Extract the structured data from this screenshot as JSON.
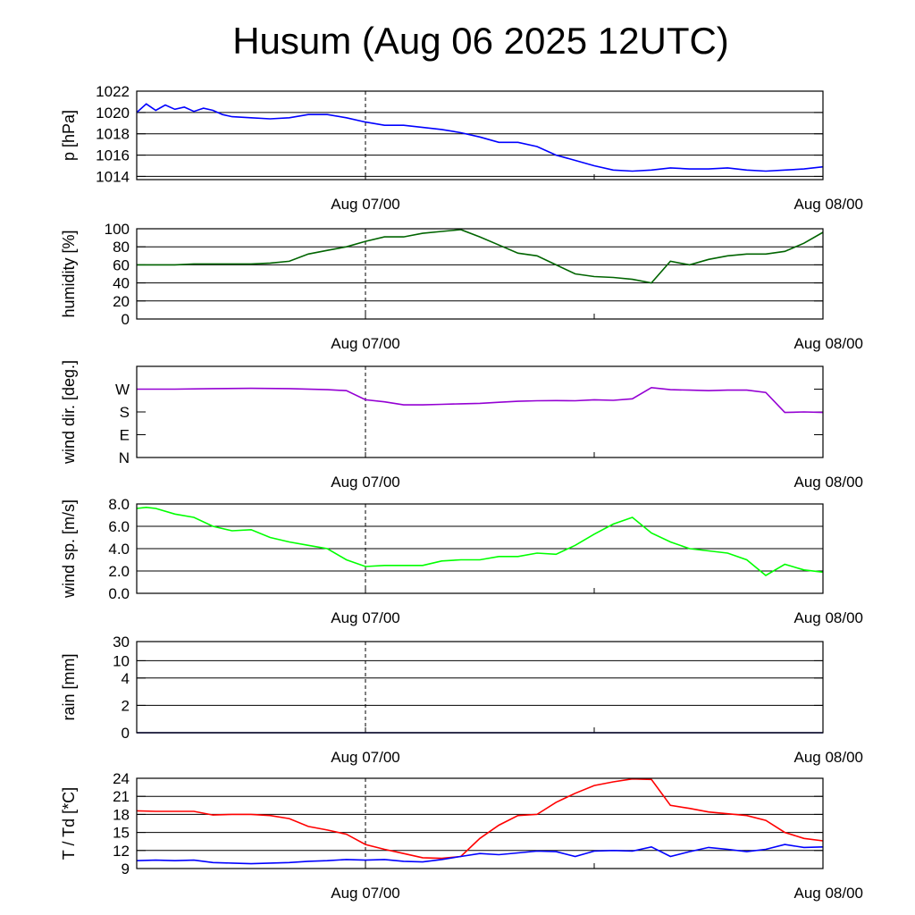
{
  "title": "Husum (Aug 06 2025 12UTC)",
  "x_tick_labels": [
    "Aug 07/00",
    "Aug 08/00"
  ],
  "chart_data": [
    {
      "type": "line",
      "ylabel": "p [hPa]",
      "ylim": [
        1013.7,
        1022
      ],
      "yticks": [
        1022,
        1020,
        1018,
        1016,
        1014
      ],
      "ytick_labels": [
        "1022",
        "1020",
        "1018",
        "1016",
        "1014"
      ],
      "grid": true,
      "series": [
        {
          "color": "#0000ff",
          "x": [
            0,
            0.5,
            1,
            1.5,
            2,
            2.5,
            3,
            3.5,
            4,
            4.5,
            5,
            6,
            7,
            8,
            9,
            10,
            11,
            12,
            13,
            14,
            15,
            16,
            17,
            18,
            19,
            20,
            21,
            22,
            23,
            24,
            25,
            26,
            27,
            28,
            29,
            30,
            31,
            32,
            33,
            34,
            35,
            36
          ],
          "y": [
            1020,
            1020.8,
            1020.2,
            1020.7,
            1020.3,
            1020.5,
            1020.1,
            1020.4,
            1020.2,
            1019.8,
            1019.6,
            1019.5,
            1019.4,
            1019.5,
            1019.8,
            1019.8,
            1019.5,
            1019.1,
            1018.8,
            1018.8,
            1018.6,
            1018.4,
            1018.1,
            1017.7,
            1017.2,
            1017.2,
            1016.8,
            1016.0,
            1015.5,
            1015.0,
            1014.6,
            1014.5,
            1014.6,
            1014.8,
            1014.7,
            1014.7,
            1014.8,
            1014.6,
            1014.5,
            1014.6,
            1014.7,
            1014.9
          ]
        }
      ]
    },
    {
      "type": "line",
      "ylabel": "humidity [%]",
      "ylim": [
        0,
        100
      ],
      "yticks": [
        100,
        80,
        60,
        40,
        20,
        0
      ],
      "ytick_labels": [
        "100",
        "80",
        "60",
        "40",
        "20",
        "0"
      ],
      "grid": true,
      "series": [
        {
          "color": "#006400",
          "x": [
            0,
            1,
            2,
            3,
            4,
            5,
            6,
            7,
            8,
            9,
            10,
            11,
            12,
            13,
            14,
            15,
            16,
            17,
            18,
            19,
            20,
            21,
            22,
            23,
            24,
            25,
            26,
            27,
            28,
            29,
            30,
            31,
            32,
            33,
            34,
            35,
            36
          ],
          "y": [
            60,
            60,
            60,
            61,
            61,
            61,
            61,
            62,
            64,
            72,
            76,
            80,
            86,
            91,
            91,
            95,
            97,
            99,
            91,
            82,
            73,
            70,
            60,
            50,
            47,
            46,
            44,
            40,
            64,
            60,
            66,
            70,
            72,
            72,
            75,
            84,
            96
          ]
        }
      ]
    },
    {
      "type": "line",
      "ylabel": "wind dir. [deg.]",
      "ylim": [
        0,
        360
      ],
      "yticks": [
        270,
        180,
        90,
        0
      ],
      "ytick_labels": [
        "W",
        "S",
        "E",
        "N"
      ],
      "grid": false,
      "series": [
        {
          "color": "#9400d3",
          "x": [
            0,
            2,
            4,
            6,
            8,
            10,
            11,
            12,
            13,
            14,
            15,
            16,
            17,
            18,
            19,
            20,
            21,
            22,
            23,
            24,
            25,
            26,
            27,
            28,
            29,
            30,
            31,
            32,
            33,
            34,
            35,
            36
          ],
          "y": [
            270,
            270,
            272,
            273,
            272,
            268,
            264,
            228,
            220,
            208,
            208,
            210,
            212,
            214,
            218,
            222,
            224,
            225,
            224,
            228,
            226,
            232,
            276,
            268,
            266,
            264,
            266,
            266,
            257,
            178,
            180,
            178
          ]
        }
      ]
    },
    {
      "type": "line",
      "ylabel": "wind sp. [m/s]",
      "ylim": [
        0,
        8
      ],
      "yticks": [
        8,
        6,
        4,
        2,
        0
      ],
      "ytick_labels": [
        "8.0",
        "6.0",
        "4.0",
        "2.0",
        "0.0"
      ],
      "grid": true,
      "series": [
        {
          "color": "#00ff00",
          "x": [
            0,
            0.5,
            1,
            2,
            3,
            4,
            5,
            6,
            7,
            8,
            9,
            10,
            11,
            12,
            13,
            14,
            15,
            16,
            17,
            18,
            19,
            20,
            21,
            22,
            23,
            24,
            25,
            26,
            27,
            28,
            29,
            30,
            31,
            32,
            33,
            34,
            35,
            36
          ],
          "y": [
            7.6,
            7.7,
            7.6,
            7.1,
            6.8,
            6.0,
            5.6,
            5.7,
            5.0,
            4.6,
            4.3,
            4.0,
            3.0,
            2.4,
            2.5,
            2.5,
            2.5,
            2.9,
            3.0,
            3.0,
            3.3,
            3.3,
            3.6,
            3.5,
            4.3,
            5.3,
            6.2,
            6.8,
            5.4,
            4.6,
            4.0,
            3.8,
            3.6,
            3.0,
            1.6,
            2.6,
            2.1,
            1.9
          ]
        }
      ]
    },
    {
      "type": "line",
      "ylabel": "rain [mm]",
      "ylim": [
        0,
        30
      ],
      "yticks": [
        30,
        10,
        4,
        2,
        0
      ],
      "ytick_labels": [
        "30",
        "10",
        "4",
        "2",
        "0"
      ],
      "grid": true,
      "series": [
        {
          "color": "#00008b",
          "x": [
            0,
            36
          ],
          "y": [
            0,
            0
          ]
        }
      ]
    },
    {
      "type": "line",
      "ylabel": "T / Td [*C]",
      "ylim": [
        9,
        24
      ],
      "yticks": [
        24,
        21,
        18,
        15,
        12,
        9
      ],
      "ytick_labels": [
        "24",
        "21",
        "18",
        "15",
        "12",
        "9"
      ],
      "grid": true,
      "series": [
        {
          "color": "#ff0000",
          "x": [
            0,
            1,
            2,
            3,
            4,
            5,
            6,
            7,
            8,
            9,
            10,
            11,
            12,
            13,
            14,
            15,
            16,
            17,
            18,
            19,
            20,
            21,
            22,
            23,
            24,
            25,
            26,
            27,
            28,
            29,
            30,
            31,
            32,
            33,
            34,
            35,
            36
          ],
          "y": [
            18.6,
            18.5,
            18.5,
            18.5,
            17.9,
            18.0,
            18.0,
            17.8,
            17.3,
            16.0,
            15.4,
            14.7,
            13.0,
            12.2,
            11.5,
            10.8,
            10.7,
            11.0,
            14.0,
            16.2,
            17.8,
            18.0,
            20.0,
            21.5,
            22.8,
            23.4,
            23.9,
            23.8,
            19.5,
            19.0,
            18.4,
            18.1,
            17.8,
            17.0,
            15.0,
            14.0,
            13.6
          ]
        },
        {
          "color": "#0000ff",
          "x": [
            0,
            1,
            2,
            3,
            4,
            5,
            6,
            7,
            8,
            9,
            10,
            11,
            12,
            13,
            14,
            15,
            16,
            17,
            18,
            19,
            20,
            21,
            22,
            23,
            24,
            25,
            26,
            27,
            28,
            29,
            30,
            31,
            32,
            33,
            34,
            35,
            36
          ],
          "y": [
            10.3,
            10.4,
            10.3,
            10.4,
            10.0,
            9.9,
            9.8,
            9.9,
            10.0,
            10.2,
            10.3,
            10.5,
            10.4,
            10.5,
            10.2,
            10.1,
            10.5,
            11.0,
            11.5,
            11.3,
            11.6,
            11.9,
            11.8,
            11.0,
            11.9,
            12.0,
            11.9,
            12.6,
            11.0,
            11.8,
            12.5,
            12.2,
            11.8,
            12.2,
            13.0,
            12.5,
            12.6
          ]
        }
      ]
    }
  ]
}
